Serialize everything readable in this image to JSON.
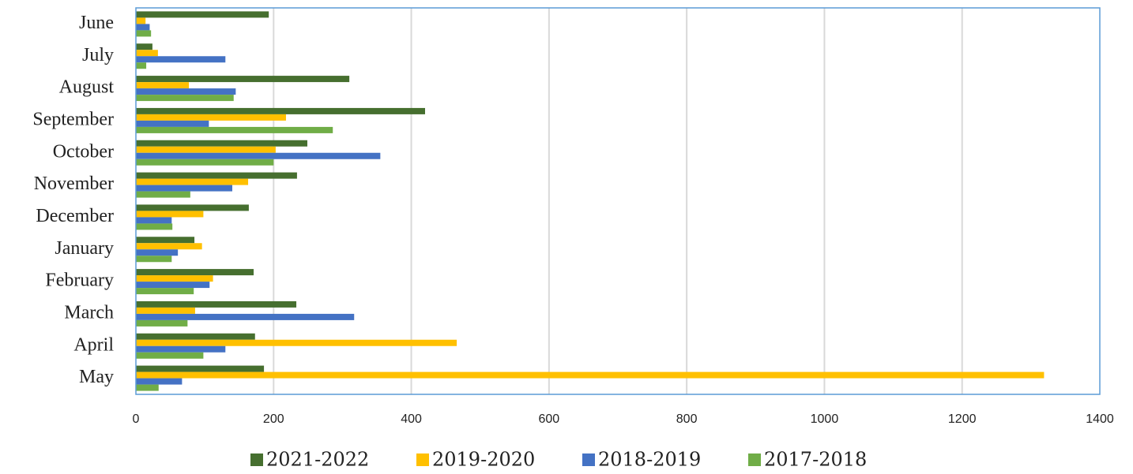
{
  "chart_data": {
    "type": "barh",
    "categories": [
      "June",
      "July",
      "August",
      "September",
      "October",
      "November",
      "December",
      "January",
      "February",
      "March",
      "April",
      "May"
    ],
    "series": [
      {
        "name": "2021-2022",
        "color": "#466f2f",
        "values": [
          193,
          24,
          310,
          420,
          249,
          234,
          164,
          85,
          171,
          233,
          173,
          186
        ]
      },
      {
        "name": "2019-2020",
        "color": "#ffc000",
        "values": [
          14,
          32,
          77,
          218,
          203,
          163,
          98,
          96,
          112,
          86,
          466,
          1319
        ]
      },
      {
        "name": "2018-2019",
        "color": "#4472c4",
        "values": [
          20,
          130,
          145,
          106,
          355,
          140,
          52,
          61,
          107,
          317,
          130,
          67
        ]
      },
      {
        "name": "2017-2018",
        "color": "#70ad47",
        "values": [
          22,
          15,
          142,
          286,
          200,
          79,
          53,
          52,
          84,
          75,
          98,
          33
        ]
      }
    ],
    "xlim": [
      0,
      1400
    ],
    "xticks": [
      0,
      200,
      400,
      600,
      800,
      1000,
      1200,
      1400
    ],
    "grid": true,
    "legend": "bottom"
  }
}
